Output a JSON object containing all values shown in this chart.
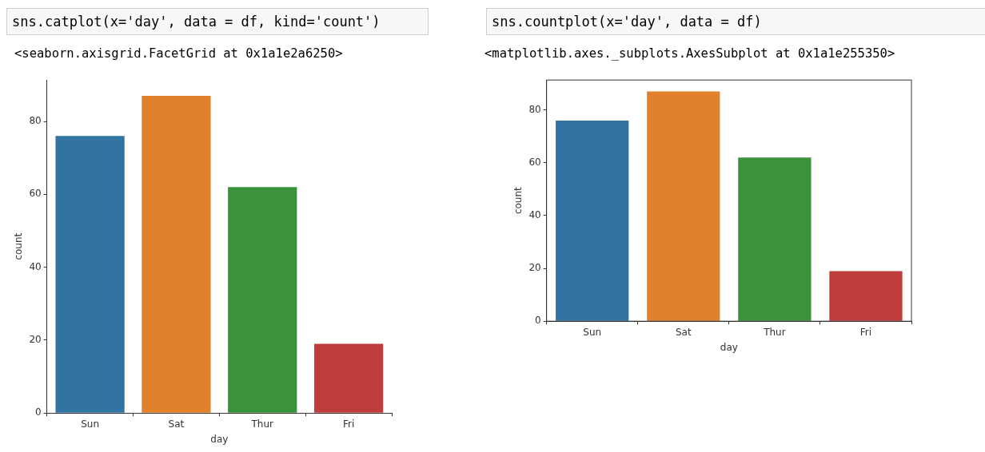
{
  "chart_data": [
    {
      "type": "bar",
      "title": "sns.catplot(x='day', data = df, kind='count')",
      "subtitle": "<seaborn.axisgrid.FacetGrid at 0x1a1e2a6250>",
      "xlabel": "day",
      "ylabel": "count",
      "categories": [
        "Sun",
        "Sat",
        "Thur",
        "Fri"
      ],
      "values": [
        76,
        87,
        62,
        19
      ],
      "colors": [
        "#3274a1",
        "#e1812c",
        "#3a923a",
        "#c03d3e"
      ],
      "ylim": [
        0,
        91.35
      ],
      "yticks": [
        0,
        20,
        40,
        60,
        80
      ]
    },
    {
      "type": "bar",
      "title": "sns.countplot(x='day', data = df)",
      "subtitle": "<matplotlib.axes._subplots.AxesSubplot at 0x1a1e255350>",
      "xlabel": "day",
      "ylabel": "count",
      "categories": [
        "Sun",
        "Sat",
        "Thur",
        "Fri"
      ],
      "values": [
        76,
        87,
        62,
        19
      ],
      "colors": [
        "#3274a1",
        "#e1812c",
        "#3a923a",
        "#c03d3e"
      ],
      "ylim": [
        0,
        91.35
      ],
      "yticks": [
        0,
        20,
        40,
        60,
        80
      ]
    }
  ]
}
